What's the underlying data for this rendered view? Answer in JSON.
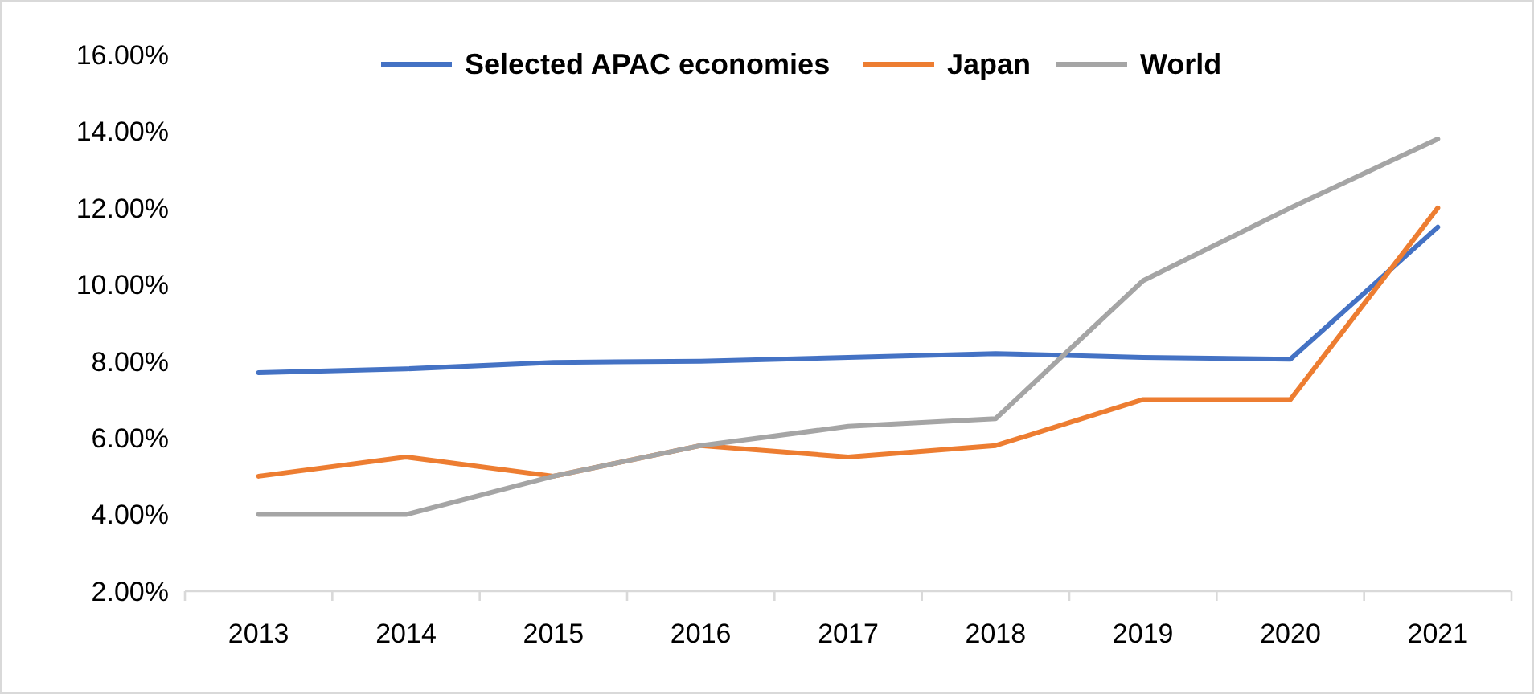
{
  "chart_data": {
    "type": "line",
    "categories": [
      "2013",
      "2014",
      "2015",
      "2016",
      "2017",
      "2018",
      "2019",
      "2020",
      "2021"
    ],
    "series": [
      {
        "name": "Selected APAC economies",
        "color": "#4472c4",
        "values": [
          7.7,
          7.8,
          7.97,
          8.0,
          8.1,
          8.2,
          8.1,
          8.05,
          11.5
        ]
      },
      {
        "name": "Japan",
        "color": "#ed7d31",
        "values": [
          5.0,
          5.5,
          5.0,
          5.8,
          5.5,
          5.8,
          7.0,
          7.0,
          12.0
        ]
      },
      {
        "name": "World",
        "color": "#a5a5a5",
        "values": [
          4.0,
          4.0,
          5.0,
          5.8,
          6.3,
          6.5,
          10.1,
          12.0,
          13.8
        ]
      }
    ],
    "ylim": [
      2,
      16
    ],
    "yticks": [
      {
        "value": 2,
        "label": "2.00%"
      },
      {
        "value": 4,
        "label": "4.00%"
      },
      {
        "value": 6,
        "label": "6.00%"
      },
      {
        "value": 8,
        "label": "8.00%"
      },
      {
        "value": 10,
        "label": "10.00%"
      },
      {
        "value": 12,
        "label": "12.00%"
      },
      {
        "value": 14,
        "label": "14.00%"
      },
      {
        "value": 16,
        "label": "16.00%"
      }
    ],
    "grid": false,
    "legend": "top",
    "marker": "none",
    "line_style": "solid"
  }
}
